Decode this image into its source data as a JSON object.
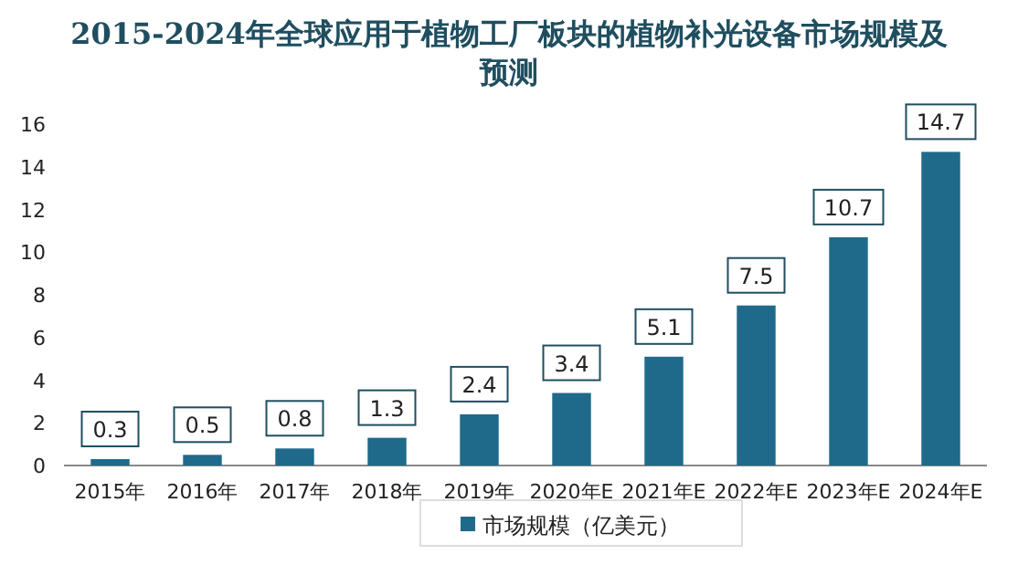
{
  "chart_data": {
    "type": "bar",
    "title": "2015-2024年全球应用于植物工厂板块的植物补光设备市场规模及预测",
    "categories": [
      "2015年",
      "2016年",
      "2017年",
      "2018年",
      "2019年",
      "2020年E",
      "2021年E",
      "2022年E",
      "2023年E",
      "2024年E"
    ],
    "series": [
      {
        "name": "市场规模（亿美元）",
        "color": "#1f6a8a",
        "values": [
          0.3,
          0.5,
          0.8,
          1.3,
          2.4,
          3.4,
          5.1,
          7.5,
          10.7,
          14.7
        ]
      }
    ],
    "ylim": [
      0,
      16
    ],
    "yticks": [
      0,
      2,
      4,
      6,
      8,
      10,
      12,
      14,
      16
    ],
    "data_labels": true,
    "legend": "bottom",
    "grid": false
  }
}
